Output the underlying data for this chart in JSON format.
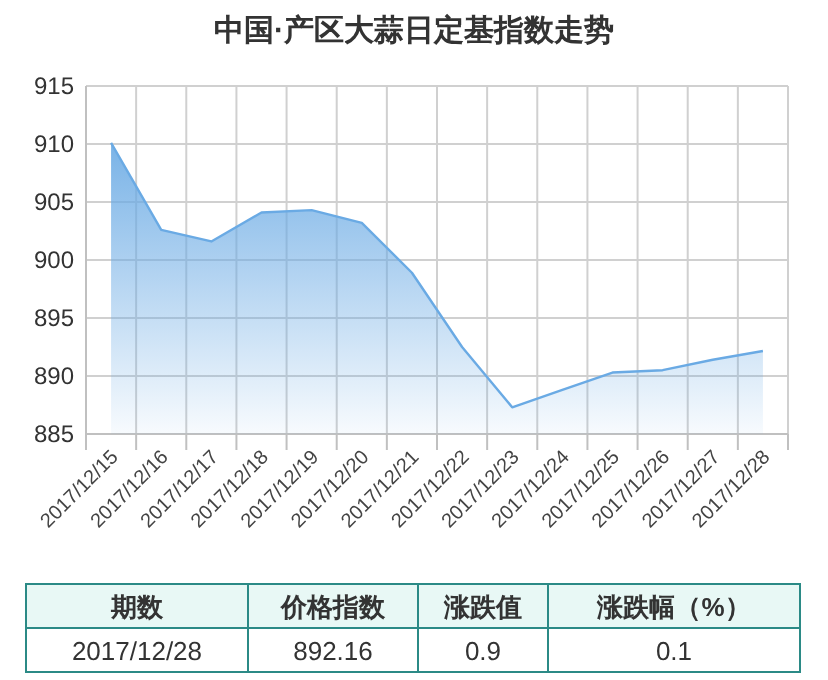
{
  "chart_data": [
    {
      "type": "area",
      "title": "中国·产区大蒜日定基指数走势",
      "categories": [
        "2017/12/15",
        "2017/12/16",
        "2017/12/17",
        "2017/12/18",
        "2017/12/19",
        "2017/12/20",
        "2017/12/21",
        "2017/12/22",
        "2017/12/23",
        "2017/12/24",
        "2017/12/25",
        "2017/12/26",
        "2017/12/27",
        "2017/12/28"
      ],
      "series": [
        {
          "color": "#6aaae4",
          "values": [
            910.1,
            902.6,
            901.6,
            904.1,
            904.3,
            903.2,
            898.9,
            892.5,
            887.3,
            888.8,
            890.3,
            890.5,
            891.4,
            892.16
          ]
        }
      ],
      "ylim": [
        885,
        915
      ],
      "yticks": [
        885,
        890,
        895,
        900,
        905,
        910,
        915
      ],
      "grid": true
    },
    {
      "type": "other",
      "annotations": [
        "期数",
        "价格指数",
        "涨跌值",
        "涨跌幅（%）",
        "2017/12/28",
        "892.16",
        "0.9",
        "0.1"
      ]
    }
  ]
}
